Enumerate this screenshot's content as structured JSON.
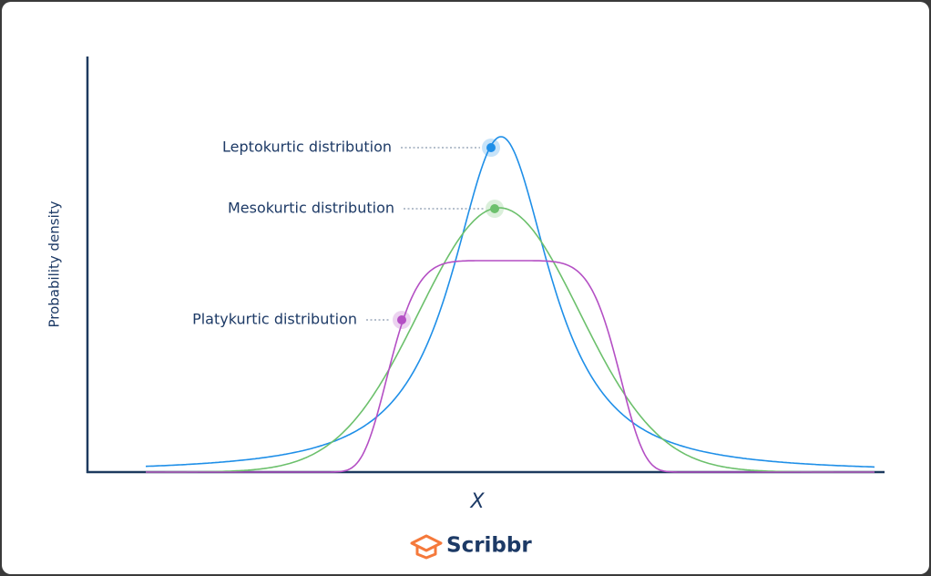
{
  "y_axis_label": "Probability density",
  "x_axis_label": "X",
  "curves": [
    {
      "label": "Leptokurtic distribution",
      "color": "#1f8fe8"
    },
    {
      "label": "Mesokurtic distribution",
      "color": "#6cc06c"
    },
    {
      "label": "Platykurtic distribution",
      "color": "#b44fc4"
    }
  ],
  "logo": "Scribbr"
}
